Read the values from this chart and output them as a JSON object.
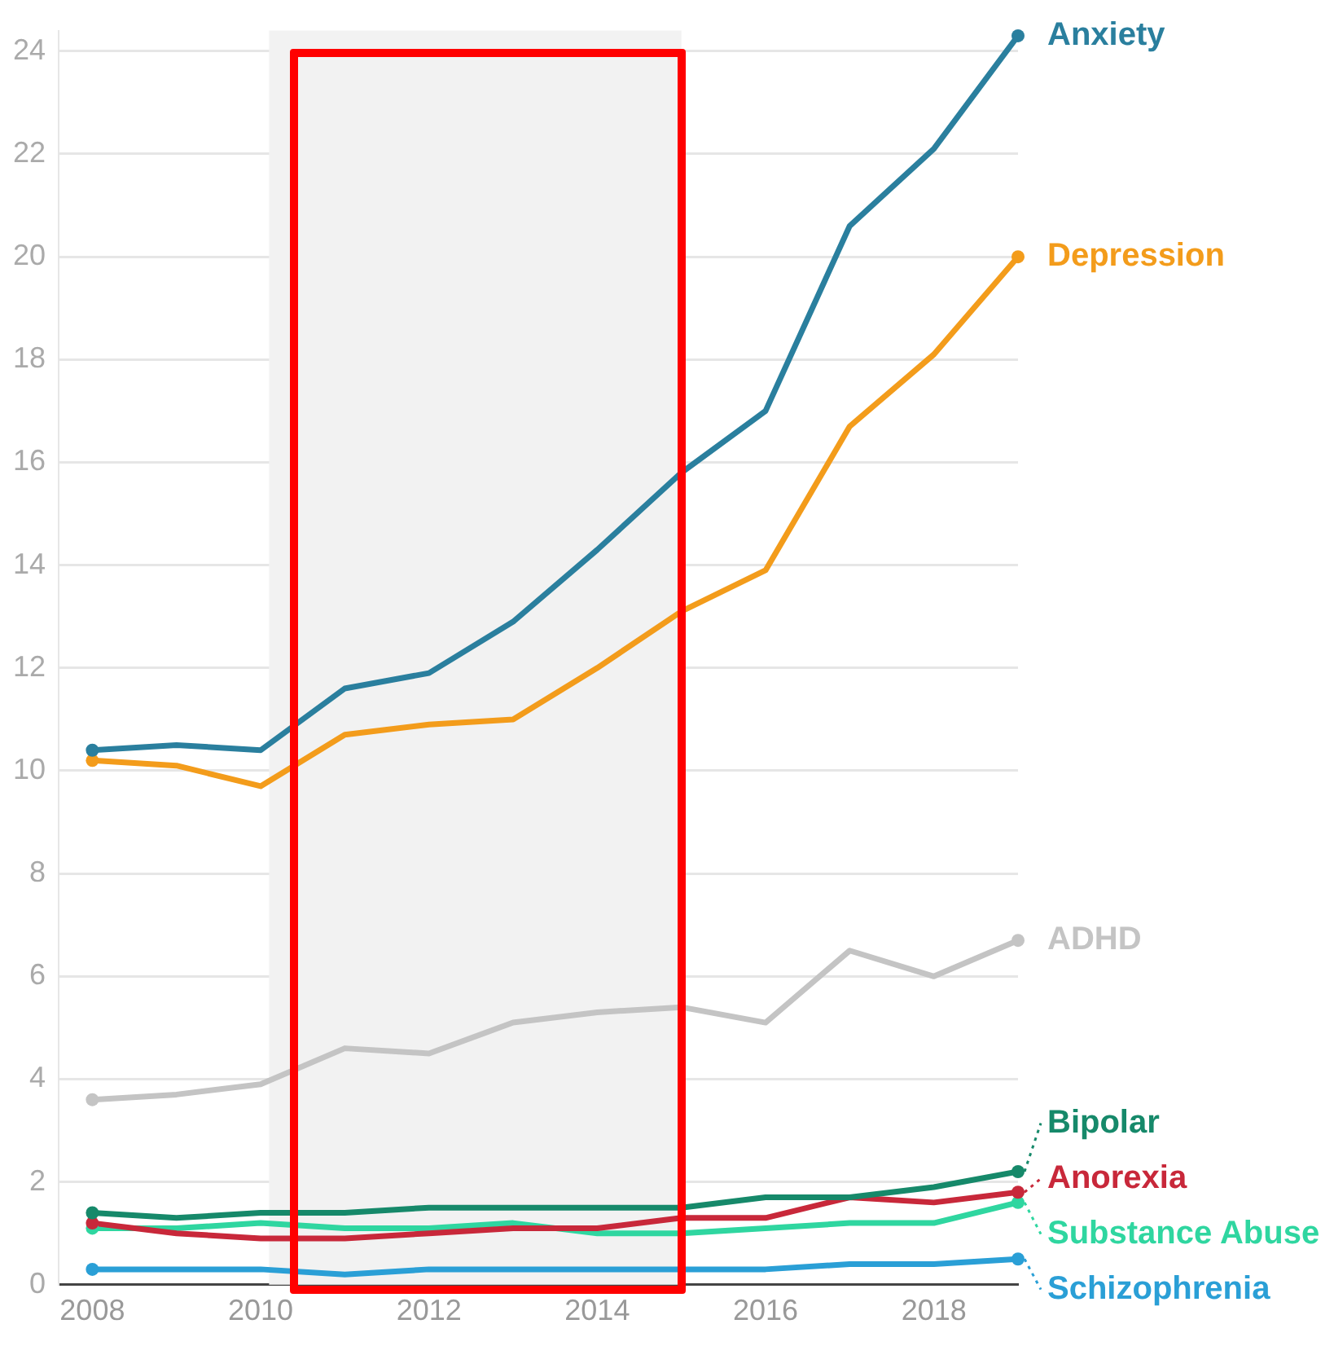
{
  "chart_data": {
    "type": "line",
    "x": [
      2008,
      2009,
      2010,
      2011,
      2012,
      2013,
      2014,
      2015,
      2016,
      2017,
      2018,
      2019
    ],
    "xlim": [
      2007.6,
      2019
    ],
    "xticks": [
      2008,
      2010,
      2012,
      2014,
      2016,
      2018
    ],
    "ylim": [
      0,
      24.4
    ],
    "yticks": [
      0,
      2,
      4,
      6,
      8,
      10,
      12,
      14,
      16,
      18,
      20,
      22,
      24
    ],
    "grid": "y",
    "legend": "right",
    "marker": "none",
    "line_style": "solid",
    "bands": [
      {
        "axis": "x",
        "from": 2010.1,
        "to": 2015,
        "color": "#f2f2f2"
      }
    ],
    "series": [
      {
        "name": "Anxiety",
        "color": "#2a7f9e",
        "values": [
          10.4,
          10.5,
          10.4,
          11.6,
          11.9,
          12.9,
          14.3,
          15.8,
          17.0,
          20.6,
          22.1,
          24.3
        ]
      },
      {
        "name": "Depression",
        "color": "#f39c1b",
        "values": [
          10.2,
          10.1,
          9.7,
          10.7,
          10.9,
          11.0,
          12.0,
          13.1,
          13.9,
          16.7,
          18.1,
          20.0
        ]
      },
      {
        "name": "ADHD",
        "color": "#c4c4c4",
        "values": [
          3.6,
          3.7,
          3.9,
          4.6,
          4.5,
          5.1,
          5.3,
          5.4,
          5.1,
          6.5,
          6.0,
          6.7
        ]
      },
      {
        "name": "Bipolar",
        "color": "#16896a",
        "values": [
          1.4,
          1.3,
          1.4,
          1.4,
          1.5,
          1.5,
          1.5,
          1.5,
          1.7,
          1.7,
          1.9,
          2.2
        ]
      },
      {
        "name": "Anorexia",
        "color": "#c8283a",
        "values": [
          1.2,
          1.0,
          0.9,
          0.9,
          1.0,
          1.1,
          1.1,
          1.3,
          1.3,
          1.7,
          1.6,
          1.8
        ]
      },
      {
        "name": "Substance Abuse",
        "color": "#2fd6a0",
        "values": [
          1.1,
          1.1,
          1.2,
          1.1,
          1.1,
          1.2,
          1.0,
          1.0,
          1.1,
          1.2,
          1.2,
          1.6
        ]
      },
      {
        "name": "Schizophrenia",
        "color": "#2a9fd6",
        "values": [
          0.3,
          0.3,
          0.3,
          0.2,
          0.3,
          0.3,
          0.3,
          0.3,
          0.3,
          0.4,
          0.4,
          0.5
        ]
      }
    ]
  }
}
